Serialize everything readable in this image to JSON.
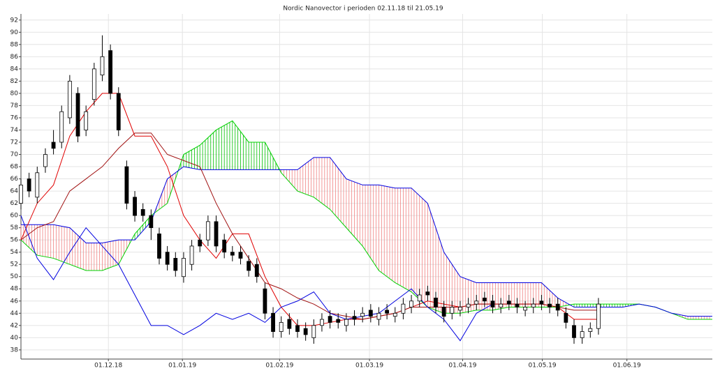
{
  "chart_data": {
    "type": "candlestick",
    "title": "Nordic Nanovector i perioden 02.11.18 til 21.05.19",
    "xlim": [
      0,
      170
    ],
    "xticks": [
      {
        "value": 21.5,
        "label": "01.12.18"
      },
      {
        "value": 39.7,
        "label": "01.01.19"
      },
      {
        "value": 63.6,
        "label": "01.02.19"
      },
      {
        "value": 85.7,
        "label": "01.03.19"
      },
      {
        "value": 108.6,
        "label": "01.04.19"
      },
      {
        "value": 128.2,
        "label": "01.05.19"
      },
      {
        "value": 149,
        "label": "01.06.19"
      }
    ],
    "ylim": [
      36.5,
      93
    ],
    "yticks": [
      38,
      40,
      42,
      44,
      46,
      48,
      50,
      52,
      54,
      56,
      58,
      60,
      62,
      64,
      66,
      68,
      70,
      72,
      74,
      76,
      78,
      80,
      82,
      84,
      86,
      88,
      90,
      92
    ],
    "grid": true,
    "candles": {
      "x": [
        0,
        2,
        4,
        6,
        8,
        10,
        12,
        14,
        16,
        18,
        20,
        22,
        24,
        26,
        28,
        30,
        32,
        34,
        36,
        38,
        40,
        42,
        44,
        46,
        48,
        50,
        52,
        54,
        56,
        58,
        60,
        62,
        64,
        66,
        68,
        70,
        72,
        74,
        76,
        78,
        80,
        82,
        84,
        86,
        88,
        90,
        92,
        94,
        96,
        98,
        100,
        102,
        104,
        106,
        108,
        110,
        112,
        114,
        116,
        118,
        120,
        122,
        124,
        126,
        128,
        130,
        132,
        134,
        136,
        138,
        140,
        142
      ],
      "open": [
        62,
        66,
        63,
        68,
        72,
        72,
        76,
        80,
        74,
        79,
        83,
        87,
        80,
        68,
        63,
        61,
        60,
        57,
        54,
        53,
        50,
        52,
        56,
        56,
        59,
        56,
        54,
        54,
        52.5,
        52,
        48,
        44,
        41,
        43,
        42,
        41.5,
        40,
        42,
        43.5,
        43,
        42,
        43.5,
        43.5,
        44.5,
        43,
        44.5,
        43.5,
        44,
        45,
        46,
        47.5,
        46.5,
        45,
        44,
        44.5,
        45,
        45.5,
        46.5,
        46,
        45,
        46,
        45.5,
        44.5,
        45,
        46,
        45.5,
        45.5,
        44,
        42,
        40,
        41,
        41.5
      ],
      "high": [
        66,
        67,
        68,
        71,
        74,
        78,
        83,
        81,
        78,
        85,
        89.5,
        88,
        81,
        69,
        64,
        62,
        61,
        58,
        55,
        54,
        54,
        56,
        57,
        60,
        60,
        57,
        55,
        55,
        53.5,
        53,
        49,
        45,
        43.5,
        44,
        43,
        42.5,
        43,
        44,
        44.5,
        44,
        44,
        44.5,
        45,
        45.5,
        45,
        45.5,
        45,
        46.5,
        47,
        48,
        48.5,
        47.5,
        46,
        46,
        46,
        46.5,
        47,
        47.5,
        47,
        46.5,
        47,
        46.5,
        46,
        46.5,
        47,
        46.5,
        46.5,
        45,
        43,
        42,
        42.5,
        46.5
      ],
      "low": [
        61,
        63,
        62,
        67,
        70,
        71,
        75,
        72,
        73,
        78,
        82,
        79,
        73,
        61,
        59,
        59,
        56,
        52,
        51,
        50,
        49,
        51,
        54,
        55,
        54,
        53,
        52.5,
        52,
        50,
        49,
        43,
        40,
        40,
        40.5,
        40,
        39.5,
        39,
        41,
        41.5,
        41.5,
        41,
        42,
        42.5,
        42.5,
        42,
        43,
        42.5,
        43,
        44,
        45,
        46,
        44,
        42.5,
        43,
        43.5,
        44,
        44.5,
        45,
        44,
        44,
        44.5,
        44,
        43.5,
        44,
        44.5,
        44,
        43.5,
        41.5,
        39,
        39,
        40,
        40.5
      ],
      "close": [
        65,
        64,
        67,
        70,
        71,
        77,
        82,
        73,
        77,
        84,
        86,
        80,
        74,
        62,
        60,
        60,
        58,
        53,
        52,
        51,
        53,
        55,
        55,
        59,
        55,
        54,
        53.5,
        53,
        51,
        50,
        44,
        41,
        42.5,
        41.5,
        41,
        40.5,
        42,
        43,
        42.5,
        42.5,
        43,
        43,
        44,
        43.5,
        44,
        44,
        44,
        45.5,
        46,
        47,
        47,
        45,
        43.5,
        45,
        45,
        45.5,
        46,
        46,
        45,
        45.5,
        45.5,
        45,
        45,
        45.5,
        45.5,
        45,
        44.5,
        42.5,
        40,
        41,
        41.5,
        45.5
      ],
      "up_color": "#ffffff",
      "down_color": "#000000"
    },
    "lines": [
      {
        "color": "#e00000",
        "x": [
          0,
          4,
          8,
          12,
          16,
          20,
          24,
          28,
          32,
          36,
          40,
          44,
          48,
          52,
          56,
          60,
          64,
          68,
          72,
          76,
          80,
          84,
          88,
          92,
          96,
          100,
          104,
          108,
          112,
          116,
          120,
          124,
          128,
          132,
          136,
          140,
          142
        ],
        "values": [
          56,
          62,
          65,
          73,
          77,
          80,
          80,
          73,
          73,
          68,
          60,
          56,
          53,
          57,
          57,
          50,
          45,
          42,
          42,
          42.5,
          43,
          43,
          43.5,
          44,
          45,
          46,
          45.5,
          45,
          45.5,
          45.5,
          45.5,
          45.5,
          45.5,
          45,
          43,
          43,
          43
        ]
      },
      {
        "color": "#a01010",
        "x": [
          0,
          4,
          8,
          12,
          16,
          20,
          24,
          28,
          32,
          36,
          40,
          44,
          48,
          52,
          56,
          60,
          64,
          68,
          72,
          76,
          80,
          84,
          88,
          92,
          96,
          100,
          104,
          108,
          112,
          116,
          120,
          124,
          128,
          132,
          136,
          140,
          142
        ],
        "values": [
          56,
          58,
          59,
          64,
          66,
          68,
          71,
          73.5,
          73.5,
          70,
          69,
          68,
          62,
          57,
          53,
          49,
          48,
          46.5,
          45.5,
          44,
          43.5,
          43,
          43.5,
          44,
          45,
          45,
          45,
          45,
          45.5,
          45.5,
          45.5,
          45.5,
          45.5,
          45,
          44.5,
          44.5,
          44.5
        ]
      },
      {
        "color": "#0000e0",
        "x": [
          0,
          4,
          8,
          12,
          16,
          20,
          24,
          28,
          32,
          36,
          40,
          44,
          48,
          52,
          56,
          60,
          64,
          68,
          72,
          76,
          80,
          84,
          88,
          92,
          96,
          100,
          104,
          108,
          112,
          116
        ],
        "values": [
          60,
          53,
          49.5,
          54,
          58,
          55,
          52,
          47,
          42,
          42,
          40.5,
          42,
          44,
          43,
          44,
          42.5,
          45,
          46,
          47.5,
          44,
          43,
          43.5,
          44,
          46,
          48,
          45,
          43,
          39.5,
          44,
          45.5
        ]
      }
    ],
    "cloud": {
      "x": [
        0,
        4,
        8,
        12,
        16,
        20,
        24,
        28,
        32,
        36,
        40,
        44,
        48,
        52,
        56,
        60,
        64,
        68,
        72,
        76,
        80,
        84,
        88,
        92,
        96,
        100,
        104,
        108,
        112,
        116,
        120,
        124,
        128,
        132,
        136,
        140,
        144,
        148,
        152,
        156,
        160,
        164,
        170
      ],
      "span_a": {
        "color": "#00d000",
        "values": [
          56,
          53.5,
          53,
          52,
          51,
          51,
          52,
          57,
          60,
          62,
          70,
          71.5,
          74,
          75.5,
          72,
          72,
          67,
          64,
          63,
          61,
          58,
          55,
          51,
          49,
          47.5,
          45,
          44,
          44,
          44.5,
          44.5,
          45,
          45,
          45,
          45,
          45.5,
          45.5,
          45.5,
          45.5,
          45.5,
          45,
          44,
          43,
          43
        ]
      },
      "span_b": {
        "color": "#0000e0",
        "values": [
          58.5,
          58.5,
          58.5,
          58,
          55.5,
          55.5,
          56,
          56,
          59,
          66,
          68,
          67.5,
          67.5,
          67.5,
          67.5,
          67.5,
          67.5,
          67.5,
          69.5,
          69.5,
          66,
          65,
          65,
          64.5,
          64.5,
          62,
          54,
          50,
          49,
          49,
          49,
          49,
          49,
          46.5,
          45,
          45,
          45,
          45,
          45.5,
          45,
          44,
          43.5,
          43.5
        ]
      },
      "a_above_color": "#00c000",
      "b_above_color": "#f08080"
    }
  }
}
